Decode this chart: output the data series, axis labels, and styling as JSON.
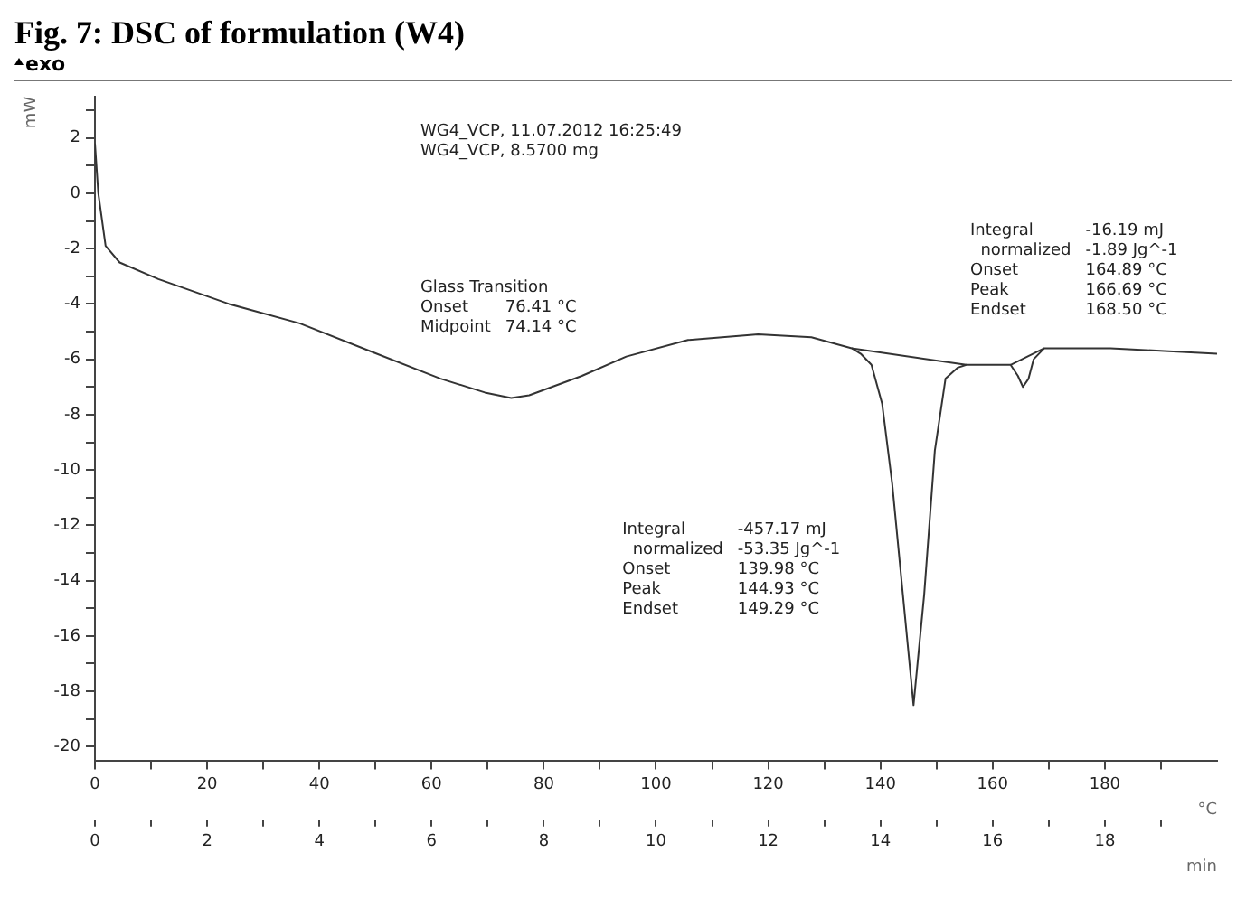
{
  "chart_data": {
    "type": "line",
    "title": "Fig. 7: DSC of formulation (W4)",
    "ylabel": "mW",
    "xlabel": "°C",
    "x2label": "min",
    "xlim": [
      0,
      200
    ],
    "xticks": [
      0,
      {
        "value": 10,
        "label": null
      },
      20,
      {
        "value": 30,
        "label": null
      },
      40,
      {
        "value": 50,
        "label": null
      },
      60,
      {
        "value": 70,
        "label": null
      },
      80,
      {
        "value": 90,
        "label": null
      },
      100,
      {
        "value": 110,
        "label": null
      },
      120,
      {
        "value": 130,
        "label": null
      },
      140,
      {
        "value": 150,
        "label": null
      },
      160,
      {
        "value": 170,
        "label": null
      },
      180,
      {
        "value": 190,
        "label": null
      }
    ],
    "x2lim": [
      0,
      20
    ],
    "x2ticks": [
      0,
      {
        "value": 1,
        "label": null
      },
      2,
      {
        "value": 3,
        "label": null
      },
      4,
      {
        "value": 5,
        "label": null
      },
      6,
      {
        "value": 7,
        "label": null
      },
      8,
      {
        "value": 9,
        "label": null
      },
      10,
      {
        "value": 11,
        "label": null
      },
      12,
      {
        "value": 13,
        "label": null
      },
      14,
      {
        "value": 15,
        "label": null
      },
      16,
      {
        "value": 17,
        "label": null
      },
      18,
      {
        "value": 19,
        "label": null
      }
    ],
    "ylim": [
      -20.5,
      3.5
    ],
    "yticks": [
      -20,
      {
        "value": -19,
        "label": null
      },
      -18,
      {
        "value": -17,
        "label": null
      },
      -16,
      {
        "value": -15,
        "label": null
      },
      -14,
      {
        "value": -13,
        "label": null
      },
      -12,
      {
        "value": -11,
        "label": null
      },
      -10,
      {
        "value": -9,
        "label": null
      },
      -8,
      {
        "value": -7,
        "label": null
      },
      -6,
      {
        "value": -5,
        "label": null
      },
      -4,
      {
        "value": -3,
        "label": null
      },
      -2,
      {
        "value": -1,
        "label": null
      },
      0,
      {
        "value": 1,
        "label": null
      },
      2,
      {
        "value": 3,
        "label": null
      }
    ],
    "grid": false,
    "legend": false,
    "marker": "none",
    "line_style": "solid",
    "series": [
      {
        "color": "#333333",
        "x": [
          0,
          0.6,
          1.9,
          4.4,
          11.3,
          23.9,
          36.5,
          49,
          61.6,
          69.5,
          74.2,
          77.4,
          86.8,
          94.7,
          105.7,
          118.2,
          127.7,
          134.9,
          136.5,
          138.4,
          140.3,
          142.1,
          144,
          145.9,
          147.8,
          149.7,
          151.6,
          153.8,
          155.3,
          162.3,
          163.2,
          164.5,
          165.4,
          166.4,
          167.3,
          169.2,
          181,
          190.6,
          200
        ],
        "values": [
          1.8,
          0,
          -1.9,
          -2.5,
          -3.1,
          -4.0,
          -4.7,
          -5.7,
          -6.7,
          -7.2,
          -7.4,
          -7.3,
          -6.6,
          -5.9,
          -5.3,
          -5.1,
          -5.2,
          -5.6,
          -5.8,
          -6.2,
          -7.6,
          -10.5,
          -14.5,
          -18.5,
          -14.5,
          -9.3,
          -6.7,
          -6.3,
          -6.2,
          -6.2,
          -6.2,
          -6.6,
          -7.0,
          -6.7,
          -6.0,
          -5.6,
          -5.6,
          -5.7,
          -5.8
        ]
      },
      {
        "color": "#333333",
        "x": [
          134.9,
          155.3
        ],
        "values": [
          -5.6,
          -6.2
        ]
      },
      {
        "color": "#333333",
        "x": [
          163.2,
          169.2
        ],
        "values": [
          -6.2,
          -5.6
        ]
      }
    ],
    "annotations": [
      "exo",
      "WG4_VCP, 11.07.2012 16:25:49\nWG4_VCP, 8.5700 mg",
      "Glass Transition\nOnset\t76.41 °C\nMidpoint\t74.14 °C",
      "Integral\t-16.19 mJ\n  normalized\t-1.89 Jg^-1\nOnset\t164.89 °C\nPeak\t166.69 °C\nEndset\t168.50 °C",
      "Integral\t-457.17 mJ\n  normalized\t-53.35 Jg^-1\nOnset\t139.98 °C\nPeak\t144.93 °C\nEndset\t149.29 °C"
    ]
  }
}
